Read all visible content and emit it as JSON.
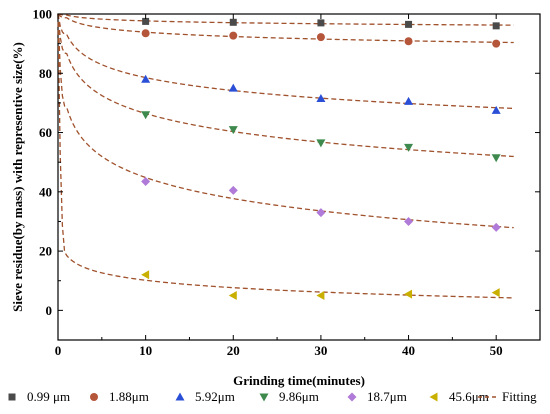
{
  "chart_data": {
    "type": "scatter",
    "title": "",
    "xlabel": "Grinding time(minutes)",
    "ylabel": "Sieve residue(by mass) with representive size(%)",
    "xlim": [
      0,
      55
    ],
    "ylim": [
      -10,
      100
    ],
    "xticks": [
      0,
      10,
      20,
      30,
      40,
      50
    ],
    "yticks": [
      0,
      20,
      40,
      60,
      80,
      100
    ],
    "legend_position": "bottom",
    "series": [
      {
        "name": "0.99 μm",
        "marker": "square",
        "color": "#4a4a4a",
        "x": [
          10,
          20,
          30,
          40,
          50
        ],
        "y": [
          97.5,
          97.2,
          97.0,
          96.5,
          96.0
        ],
        "fit": {
          "a": 2.5,
          "b": 0.12,
          "c": 0.55
        }
      },
      {
        "name": "1.88μm",
        "marker": "circle",
        "color": "#b5553a",
        "x": [
          10,
          20,
          30,
          40,
          50
        ],
        "y": [
          93.5,
          92.7,
          92.2,
          90.8,
          90.0
        ],
        "fit": {
          "a": 6.0,
          "b": 0.3,
          "c": 0.45
        }
      },
      {
        "name": "5.92μm",
        "marker": "triangle-up",
        "color": "#2a4fd6",
        "x": [
          10,
          20,
          30,
          40,
          50
        ],
        "y": [
          78.0,
          75.0,
          71.5,
          70.5,
          67.5
        ],
        "fit": {
          "a": 17.5,
          "b": 0.25,
          "c": 0.6
        }
      },
      {
        "name": "9.86μm",
        "marker": "triangle-down",
        "color": "#3e8a4e",
        "x": [
          10,
          20,
          30,
          40,
          50
        ],
        "y": [
          66.0,
          61.0,
          56.5,
          55.0,
          51.5
        ],
        "fit": {
          "a": 27.5,
          "b": 0.33,
          "c": 0.58
        }
      },
      {
        "name": "18.7μm",
        "marker": "diamond",
        "color": "#b07ad8",
        "x": [
          10,
          20,
          30,
          40,
          50
        ],
        "y": [
          43.5,
          40.5,
          33.0,
          30.0,
          28.0
        ],
        "fit": {
          "a": 52.0,
          "b": 0.29,
          "c": 0.75
        }
      },
      {
        "name": "45.6μm",
        "marker": "triangle-left",
        "color": "#c9b000",
        "x": [
          10,
          20,
          30,
          40,
          50
        ],
        "y": [
          12.0,
          5.0,
          5.0,
          5.5,
          6.0
        ],
        "fit": {
          "a": 86.0,
          "b": 0.75,
          "c": 1.0
        }
      },
      {
        "name": "Fitting",
        "marker": "dashed-line",
        "color": "#a0522d"
      }
    ]
  }
}
